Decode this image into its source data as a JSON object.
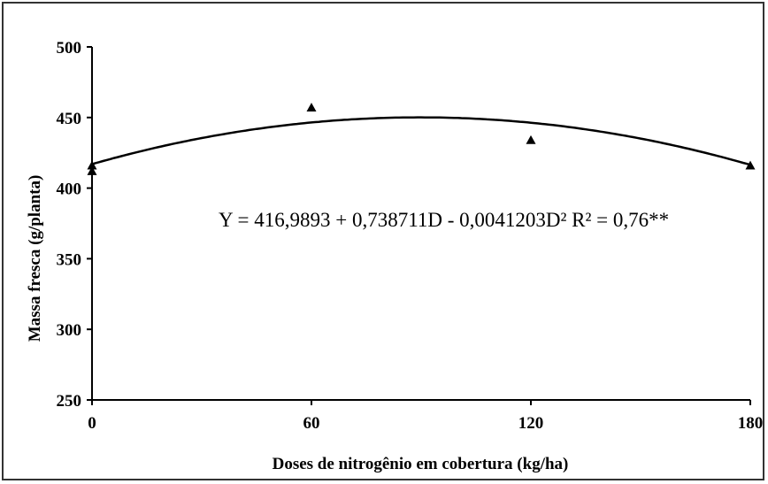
{
  "chart_data": {
    "type": "scatter",
    "title": "",
    "xlabel": "Doses de nitrogênio em cobertura (kg/ha)",
    "ylabel": "Massa fresca (g/planta)",
    "xlim": [
      0,
      180
    ],
    "ylim": [
      250,
      500
    ],
    "x_ticks": [
      0,
      60,
      120,
      180
    ],
    "x_tick_labels": [
      "0",
      "60",
      "120",
      "180"
    ],
    "y_ticks": [
      250,
      300,
      350,
      400,
      450,
      500
    ],
    "y_tick_labels": [
      "250",
      "300",
      "350",
      "400",
      "450",
      "500"
    ],
    "grid": false,
    "legend": "none",
    "series": [
      {
        "kind": "points",
        "marker": "triangle",
        "x": [
          0,
          0,
          60,
          120,
          180
        ],
        "y": [
          416,
          412,
          457,
          434,
          416
        ]
      },
      {
        "kind": "fitted-curve",
        "equation": {
          "a": 416.9893,
          "b": 0.738711,
          "c": -0.0041203
        },
        "x_range": [
          0,
          180
        ]
      }
    ],
    "annotation": "Y = 416,9893 + 0,738711D - 0,0041203D² R² = 0,76**",
    "colors": {
      "marker": "#000000",
      "line": "#000000",
      "axis": "#000000"
    }
  }
}
